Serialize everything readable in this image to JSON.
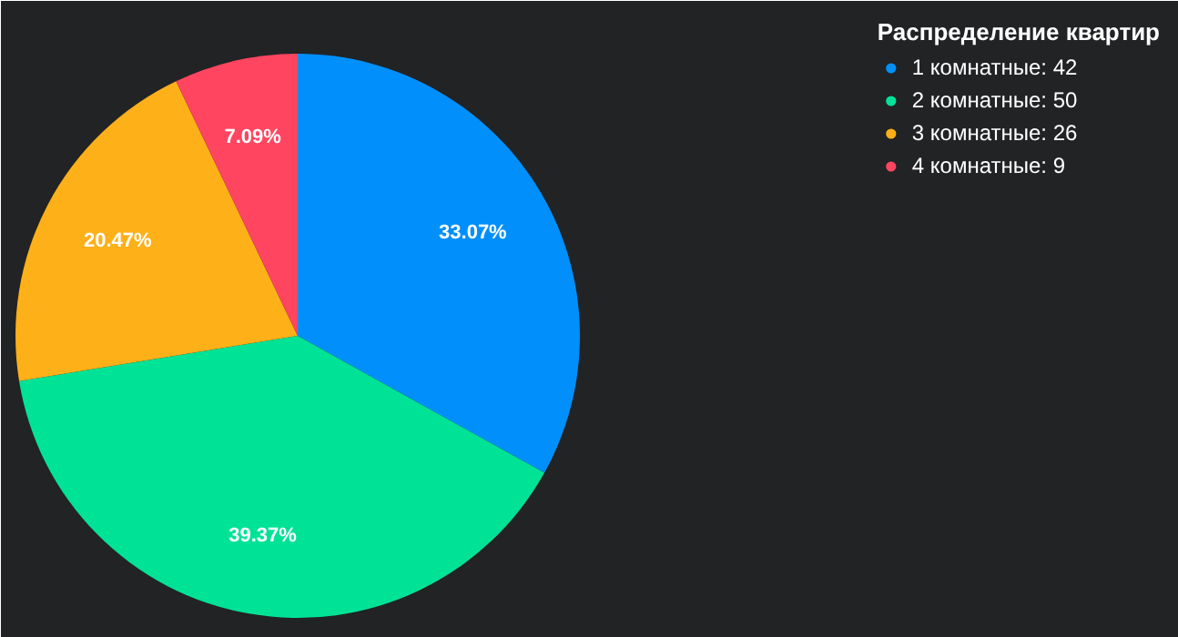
{
  "chart_data": {
    "type": "pie",
    "legend_title": "Распределение квартир",
    "categories": [
      "1 комнатные: 42",
      "2 комнатные: 50",
      "3 комнатные: 26",
      "4 комнатные: 9"
    ],
    "values": [
      33.07,
      39.37,
      20.47,
      7.09
    ],
    "colors": [
      "#008ffb",
      "#00e396",
      "#feb019",
      "#ff4560"
    ],
    "value_labels": [
      "33.07%",
      "39.37%",
      "20.47%",
      "7.09%"
    ],
    "legend": "top right"
  }
}
